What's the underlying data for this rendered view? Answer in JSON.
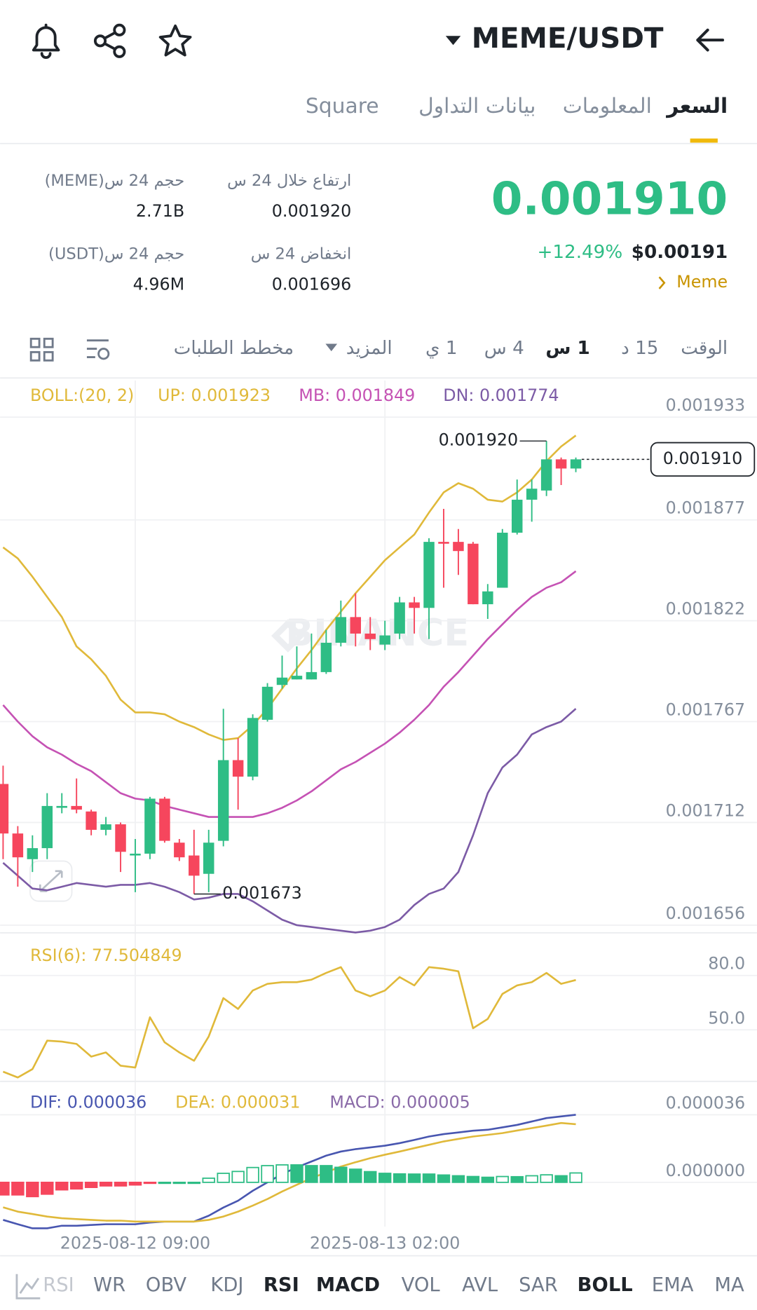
{
  "header": {
    "pair": "MEME/USDT"
  },
  "tabs": [
    "السعر",
    "المعلومات",
    "بيانات التداول",
    "Square"
  ],
  "price": {
    "last": "0.001910",
    "change": "+12.49%",
    "usd": "$0.00191",
    "tag": "Meme"
  },
  "stats": [
    {
      "label": "ارتفاع خلال 24 س",
      "value": "0.001920"
    },
    {
      "label": "حجم 24 س(MEME)",
      "value": "2.71B"
    },
    {
      "label": "انخفاض 24 س",
      "value": "0.001696"
    },
    {
      "label": "حجم 24 س(USDT)",
      "value": "4.96M"
    }
  ],
  "intervals": [
    "الوقت",
    "15 د",
    "1 س",
    "4 س",
    "1 ي",
    "المزيد",
    "مخطط الطلبات"
  ],
  "active_interval": 2,
  "watermark": "BINANCE",
  "chart_data": [
    {
      "type": "candlestick",
      "legend_title": "BOLL:(20, 2)",
      "ylim": [
        0.00165,
        0.001953
      ],
      "yticks": [
        0.001933,
        0.001877,
        0.001822,
        0.001767,
        0.001712,
        0.001656
      ],
      "grid": true,
      "up_color": "#2ebd85",
      "down_color": "#f6465d",
      "open": [
        0.001733,
        0.001706,
        0.001692,
        0.001698,
        0.00172,
        0.001721,
        0.001718,
        0.001708,
        0.001711,
        0.001694,
        0.001695,
        0.001725,
        0.001701,
        0.001694,
        0.001684,
        0.001702,
        0.001746,
        0.001737,
        0.001768,
        0.001787,
        0.00179,
        0.00179,
        0.001794,
        0.00181,
        0.001824,
        0.001815,
        0.001809,
        0.001815,
        0.001832,
        0.001829,
        0.001865,
        0.001865,
        0.001864,
        0.001831,
        0.00184,
        0.00187,
        0.001888,
        0.001893,
        0.00191,
        0.001905
      ],
      "high": [
        0.001743,
        0.00171,
        0.001705,
        0.001728,
        0.001728,
        0.001736,
        0.001719,
        0.001715,
        0.001712,
        0.001703,
        0.001726,
        0.001726,
        0.001703,
        0.001708,
        0.001708,
        0.001774,
        0.001758,
        0.001771,
        0.001788,
        0.001803,
        0.001808,
        0.001815,
        0.001817,
        0.001833,
        0.001837,
        0.001824,
        0.001822,
        0.001835,
        0.001835,
        0.001867,
        0.001883,
        0.001872,
        0.001865,
        0.001842,
        0.001872,
        0.001899,
        0.001899,
        0.00192,
        0.001911,
        0.001911
      ],
      "low": [
        0.001692,
        0.001677,
        0.001685,
        0.001692,
        0.001717,
        0.001717,
        0.001705,
        0.001705,
        0.001685,
        0.001674,
        0.001692,
        0.001701,
        0.001691,
        0.001673,
        0.001674,
        0.001699,
        0.001719,
        0.001735,
        0.001767,
        0.001785,
        0.00179,
        0.00179,
        0.001793,
        0.001808,
        0.001808,
        0.001806,
        0.001806,
        0.001812,
        0.001815,
        0.001812,
        0.00184,
        0.001847,
        0.001831,
        0.001823,
        0.00184,
        0.001869,
        0.001876,
        0.00189,
        0.001896,
        0.001903
      ],
      "close": [
        0.001706,
        0.001693,
        0.001698,
        0.001721,
        0.001721,
        0.001719,
        0.001708,
        0.001711,
        0.001696,
        0.001695,
        0.001725,
        0.001702,
        0.001693,
        0.001683,
        0.001701,
        0.001746,
        0.001737,
        0.001769,
        0.001786,
        0.001791,
        0.001792,
        0.001794,
        0.00181,
        0.001824,
        0.001815,
        0.001812,
        0.001814,
        0.001832,
        0.001829,
        0.001865,
        0.001864,
        0.00186,
        0.001831,
        0.001838,
        0.00187,
        0.001888,
        0.001894,
        0.00191,
        0.001905,
        0.00191
      ],
      "series": [
        {
          "name": "UP: 0.001923",
          "color": "#e0b93a",
          "values": [
            0.001862,
            0.001856,
            0.001846,
            0.001835,
            0.001824,
            0.001808,
            0.001801,
            0.001792,
            0.001779,
            0.001772,
            0.001772,
            0.001771,
            0.001767,
            0.001764,
            0.00176,
            0.001757,
            0.001758,
            0.001765,
            0.001774,
            0.001785,
            0.001796,
            0.001806,
            0.001817,
            0.001827,
            0.001837,
            0.001846,
            0.001855,
            0.001862,
            0.001869,
            0.001881,
            0.001892,
            0.001897,
            0.001894,
            0.001888,
            0.001887,
            0.001892,
            0.001899,
            0.001909,
            0.001917,
            0.001923
          ]
        },
        {
          "name": "MB: 0.001849",
          "color": "#c552b4",
          "values": [
            0.001776,
            0.001767,
            0.001759,
            0.001753,
            0.001749,
            0.001744,
            0.00174,
            0.001734,
            0.001728,
            0.001725,
            0.001724,
            0.001721,
            0.001719,
            0.001717,
            0.001715,
            0.001715,
            0.001715,
            0.001715,
            0.001717,
            0.00172,
            0.001724,
            0.001729,
            0.001735,
            0.001741,
            0.001745,
            0.00175,
            0.001755,
            0.001761,
            0.001768,
            0.001776,
            0.001786,
            0.001794,
            0.001803,
            0.001812,
            0.00182,
            0.001828,
            0.001835,
            0.00184,
            0.001843,
            0.001849
          ]
        },
        {
          "name": "DN: 0.001774",
          "color": "#7c5ba6",
          "values": [
            0.00169,
            0.001683,
            0.001676,
            0.001675,
            0.001677,
            0.001679,
            0.001678,
            0.001677,
            0.001678,
            0.001678,
            0.001679,
            0.001677,
            0.001674,
            0.00167,
            0.001671,
            0.001673,
            0.001673,
            0.001669,
            0.001664,
            0.001659,
            0.001656,
            0.001655,
            0.001654,
            0.001653,
            0.001652,
            0.001653,
            0.001655,
            0.001659,
            0.001667,
            0.001673,
            0.001676,
            0.001685,
            0.001705,
            0.001728,
            0.001742,
            0.001749,
            0.00176,
            0.001764,
            0.001767,
            0.001774
          ]
        }
      ],
      "last_price": {
        "value": 0.00191,
        "label": "0.001910"
      },
      "high_mark": {
        "value": 0.00192,
        "label": "0.001920"
      },
      "low_mark": {
        "value": 0.001673,
        "label": "0.001673"
      }
    },
    {
      "type": "line",
      "legend_title": "RSI(6): 77.504849",
      "ylim": [
        22,
        98
      ],
      "yticks": [
        {
          "value": 80,
          "label": "80.0"
        },
        {
          "value": 50,
          "label": "50.0"
        }
      ],
      "series": [
        {
          "name": "RSI(6)",
          "color": "#e0b93a",
          "values": [
            26.9,
            23.7,
            28.3,
            44.0,
            43.5,
            42.2,
            35.2,
            37.5,
            30.2,
            29.2,
            56.9,
            43.1,
            37.5,
            32.9,
            46.3,
            67.5,
            61.5,
            71.7,
            75.4,
            76.3,
            76.3,
            77.7,
            81.4,
            84.6,
            71.7,
            68.5,
            71.7,
            79.1,
            74.5,
            84.6,
            83.7,
            82.3,
            50.9,
            56.0,
            69.8,
            74.5,
            76.3,
            81.4,
            75.4,
            77.5
          ]
        }
      ]
    },
    {
      "type": "macd",
      "ylim": [
        -3e-05,
        5e-05
      ],
      "yticks": [
        3.6e-05,
        {
          "value": 0,
          "label": "0.000000"
        }
      ],
      "categories": [
        null,
        null,
        null,
        null,
        null,
        null,
        null,
        null,
        null,
        "2025-08-12 09:00",
        null,
        null,
        null,
        null,
        null,
        null,
        null,
        null,
        null,
        null,
        null,
        null,
        null,
        null,
        null,
        null,
        "2025-08-13 02:00",
        null,
        null,
        null,
        null,
        null,
        null,
        null,
        null,
        null,
        null,
        null,
        null,
        null
      ],
      "series": [
        {
          "name": "DIF: 0.000036",
          "color": "#4856b0",
          "values": [
            -2e-05,
            -2.23e-05,
            -2.45e-05,
            -2.45e-05,
            -2.31e-05,
            -2.31e-05,
            -2.27e-05,
            -2.23e-05,
            -2.23e-05,
            -2.23e-05,
            -2.14e-05,
            -2.09e-05,
            -2.09e-05,
            -2.09e-05,
            -1.78e-05,
            -1.34e-05,
            -9.8e-06,
            -4.5e-06,
            0,
            4.4e-06,
            8e-06,
            1.11e-05,
            1.42e-05,
            1.64e-05,
            1.77e-05,
            1.86e-05,
            1.95e-05,
            2.09e-05,
            2.26e-05,
            2.44e-05,
            2.57e-05,
            2.66e-05,
            2.75e-05,
            2.8e-05,
            2.93e-05,
            3.06e-05,
            3.24e-05,
            3.42e-05,
            3.51e-05,
            3.6e-05
          ]
        },
        {
          "name": "DEA: 0.000031",
          "color": "#e0b93a",
          "values": [
            -1.33e-05,
            -1.56e-05,
            -1.69e-05,
            -1.82e-05,
            -1.91e-05,
            -1.96e-05,
            -2e-05,
            -2.04e-05,
            -2.04e-05,
            -2.09e-05,
            -2.09e-05,
            -2.09e-05,
            -2.09e-05,
            -2.09e-05,
            -2e-05,
            -1.82e-05,
            -1.56e-05,
            -1.24e-05,
            -8.9e-06,
            -4.9e-06,
            -1.3e-06,
            2.2e-06,
            5.3e-06,
            8.4e-06,
            1.07e-05,
            1.29e-05,
            1.47e-05,
            1.64e-05,
            1.82e-05,
            2e-05,
            2.18e-05,
            2.31e-05,
            2.44e-05,
            2.53e-05,
            2.62e-05,
            2.76e-05,
            2.89e-05,
            3.02e-05,
            3.16e-05,
            3.1e-05
          ]
        },
        {
          "name": "MACD: 0.000005",
          "color": "#8a6aa8",
          "kind": "histogram",
          "up_color": "#2ebd85",
          "down_color": "#f6465d",
          "values": [
            -6.7e-06,
            -6.7e-06,
            -7.6e-06,
            -6.3e-06,
            -4e-06,
            -3.5e-06,
            -2.7e-06,
            -1.9e-06,
            -1.9e-06,
            -1.4e-06,
            -5e-07,
            0,
            0,
            0,
            2.2e-06,
            4.8e-06,
            5.8e-06,
            7.9e-06,
            8.9e-06,
            9.3e-06,
            9.3e-06,
            8.9e-06,
            8.9e-06,
            8e-06,
            7e-06,
            5.7e-06,
            4.8e-06,
            4.5e-06,
            4.4e-06,
            4.4e-06,
            3.9e-06,
            3.5e-06,
            3.1e-06,
            2.7e-06,
            3.1e-06,
            3e-06,
            3.5e-06,
            4e-06,
            3.5e-06,
            5e-06
          ]
        }
      ]
    }
  ],
  "indicators": [
    "RSI",
    "WR",
    "OBV",
    "KDJ",
    "RSI",
    "MACD",
    "VOL",
    "AVL",
    "SAR",
    "BOLL",
    "EMA",
    "MA"
  ],
  "active_indicators": [
    4,
    5,
    9
  ]
}
